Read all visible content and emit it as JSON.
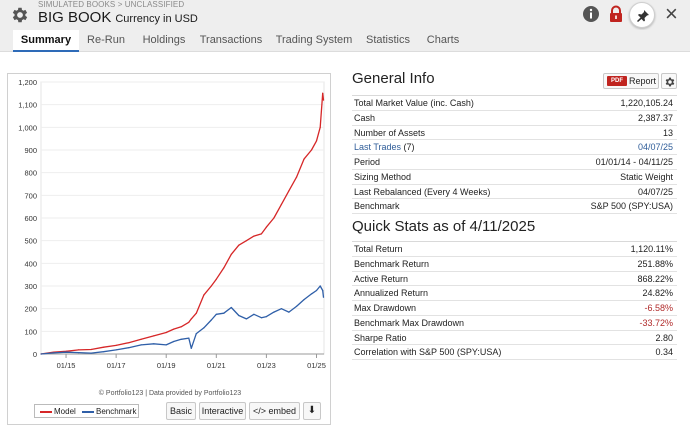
{
  "header": {
    "breadcrumb": "SIMULATED BOOKS > UNCLASSIFIED",
    "title": "BIG BOOK",
    "subtitle": "Currency in USD",
    "close_label": "×"
  },
  "tabs": [
    {
      "label": "Summary",
      "active": true
    },
    {
      "label": "Re-Run"
    },
    {
      "label": "Holdings"
    },
    {
      "label": "Transactions"
    },
    {
      "label": "Trading System"
    },
    {
      "label": "Statistics"
    },
    {
      "label": "Charts"
    }
  ],
  "chart": {
    "footer": "© Portfolio123 | Data provided by Portfolio123",
    "legend": [
      {
        "name": "Model",
        "color": "#d62728"
      },
      {
        "name": "Benchmark",
        "color": "#2f5fa8"
      }
    ],
    "buttons": {
      "basic": "Basic",
      "interactive": "Interactive",
      "embed": "</> embed",
      "download": "⬇"
    }
  },
  "chart_data": {
    "type": "line",
    "x_ticks": [
      "01/15",
      "01/17",
      "01/19",
      "01/21",
      "01/23",
      "01/25"
    ],
    "y_ticks": [
      "0",
      "100",
      "200",
      "300",
      "400",
      "500",
      "600",
      "700",
      "800",
      "900",
      "1,000",
      "1,100",
      "1,200"
    ],
    "ylim": [
      0,
      1200
    ],
    "x": [
      2014.0,
      2014.5,
      2015.0,
      2015.5,
      2016.0,
      2016.5,
      2017.0,
      2017.5,
      2018.0,
      2018.5,
      2019.0,
      2019.3,
      2019.6,
      2019.9,
      2020.0,
      2020.2,
      2020.5,
      2020.8,
      2021.0,
      2021.3,
      2021.6,
      2021.9,
      2022.2,
      2022.5,
      2022.8,
      2023.0,
      2023.3,
      2023.6,
      2023.9,
      2024.2,
      2024.5,
      2024.8,
      2025.0,
      2025.15,
      2025.25,
      2025.28
    ],
    "series": [
      {
        "name": "Model",
        "color": "#d62728",
        "values": [
          0,
          8,
          12,
          18,
          20,
          30,
          38,
          50,
          65,
          80,
          95,
          110,
          120,
          140,
          155,
          180,
          260,
          300,
          330,
          380,
          440,
          480,
          500,
          520,
          530,
          560,
          600,
          660,
          720,
          780,
          860,
          900,
          940,
          1000,
          1150,
          1120
        ]
      },
      {
        "name": "Benchmark",
        "color": "#2f5fa8",
        "values": [
          0,
          5,
          8,
          6,
          4,
          10,
          18,
          28,
          40,
          45,
          40,
          55,
          65,
          70,
          25,
          90,
          115,
          150,
          175,
          180,
          205,
          170,
          155,
          175,
          160,
          165,
          185,
          200,
          185,
          210,
          240,
          265,
          280,
          300,
          280,
          250
        ]
      }
    ]
  },
  "general_info": {
    "title": "General Info",
    "pdf_tag": "PDF",
    "report_label": "Report",
    "rows": [
      {
        "k": "Total Market Value (inc. Cash)",
        "v": "1,220,105.24"
      },
      {
        "k": "Cash",
        "v": "2,387.37"
      },
      {
        "k": "Number of Assets",
        "v": "13"
      },
      {
        "k": "Last Trades",
        "k_suffix": " (7)",
        "v": "04/07/25",
        "link": true
      },
      {
        "k": "Period",
        "v": "01/01/14 - 04/11/25"
      },
      {
        "k": "Sizing Method",
        "v": "Static Weight"
      },
      {
        "k": "Last Rebalanced (Every 4 Weeks)",
        "v": "04/07/25"
      },
      {
        "k": "Benchmark",
        "v": "S&P 500 (SPY:USA)"
      }
    ]
  },
  "quick_stats": {
    "title": "Quick Stats as of 4/11/2025",
    "rows": [
      {
        "k": "Total Return",
        "v": "1,120.11%"
      },
      {
        "k": "Benchmark Return",
        "v": "251.88%"
      },
      {
        "k": "Active Return",
        "v": "868.22%"
      },
      {
        "k": "Annualized Return",
        "v": "24.82%"
      },
      {
        "k": "Max Drawdown",
        "v": "-6.58%",
        "neg": true
      },
      {
        "k": "Benchmark Max Drawdown",
        "v": "-33.72%",
        "neg": true
      },
      {
        "k": "Sharpe Ratio",
        "v": "2.80"
      },
      {
        "k": "Correlation with S&P 500 (SPY:USA)",
        "v": "0.34"
      }
    ]
  }
}
